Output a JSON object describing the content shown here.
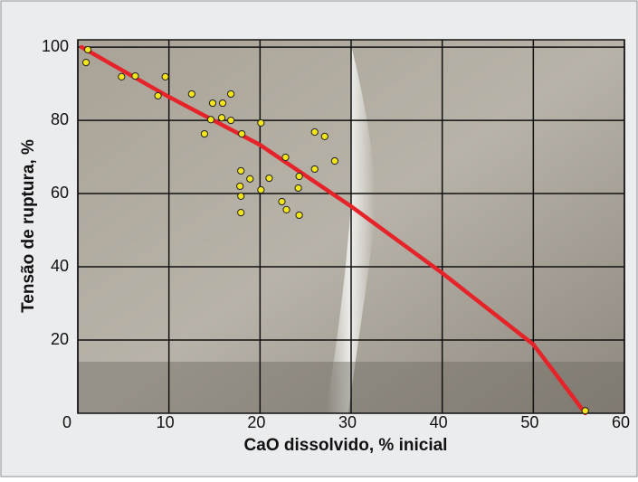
{
  "chart_data": {
    "type": "scatter",
    "x_label": "CaO dissolvido, % inicial",
    "y_label": "Tensão de ruptura, %",
    "xlim": [
      0,
      60
    ],
    "ylim": [
      0,
      102
    ],
    "xticks": [
      0,
      10,
      20,
      30,
      40,
      50,
      60
    ],
    "yticks": [
      20,
      40,
      60,
      80,
      100
    ],
    "grid": true,
    "points": {
      "color": "#f5e61b",
      "x": [
        0.9,
        1.1,
        4.8,
        6.3,
        8.8,
        9.6,
        12.5,
        14.8,
        15.9,
        16.8,
        14.6,
        15.8,
        16.8,
        20.1,
        13.9,
        18,
        26,
        27.1,
        22.8,
        28.2,
        26,
        17.9,
        18.9,
        21,
        24.3,
        17.8,
        20.1,
        24.2,
        17.9,
        22.4,
        22.9,
        17.9,
        24.3,
        55.7
      ],
      "y": [
        95.8,
        99.3,
        91.9,
        92.1,
        86.7,
        91.9,
        87.2,
        84.7,
        84.7,
        87.2,
        80.2,
        80.7,
        80,
        79.3,
        76.3,
        76.3,
        76.8,
        75.6,
        69.9,
        68.9,
        66.7,
        66.2,
        64,
        64.2,
        64.7,
        62,
        61,
        61.5,
        59.3,
        57.8,
        55.6,
        54.8,
        54.1,
        0.7
      ]
    },
    "fit": {
      "color": "#e52329",
      "x": [
        0.4,
        10,
        20,
        30,
        40,
        50,
        55.7
      ],
      "y": [
        100,
        86.4,
        73.3,
        56.5,
        38.3,
        18.8,
        0
      ]
    }
  }
}
